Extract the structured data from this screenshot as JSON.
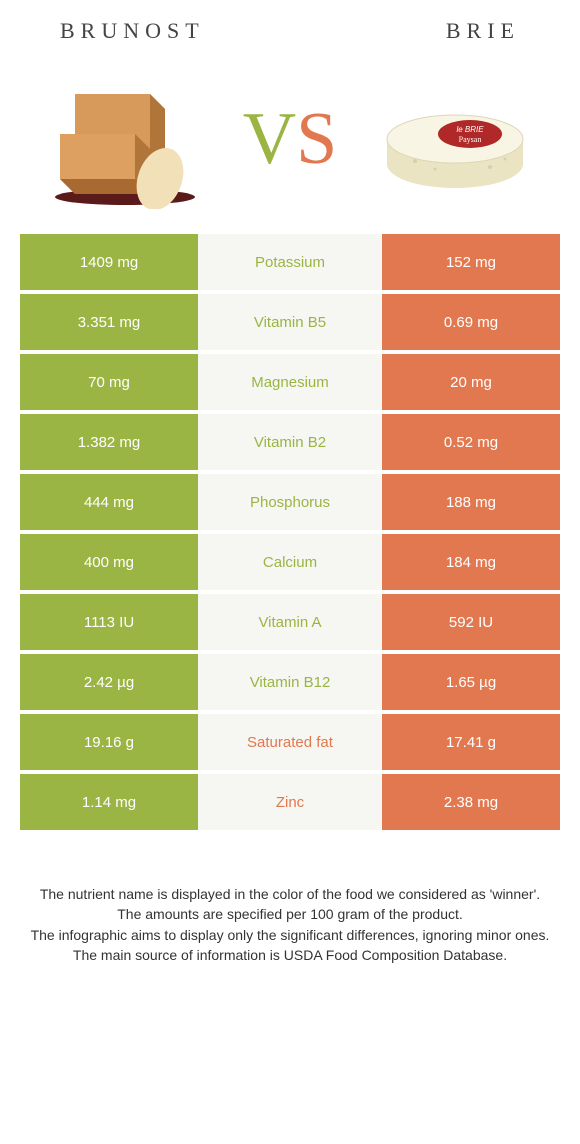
{
  "colors": {
    "left": "#9bb544",
    "right": "#e2784f",
    "mid_bg": "#f6f6f2",
    "text_dark": "#333333"
  },
  "header": {
    "left_title": "BRUNOST",
    "right_title": "BRIE"
  },
  "vs": {
    "v": "V",
    "s": "S"
  },
  "rows": [
    {
      "left": "1409 mg",
      "label": "Potassium",
      "right": "152 mg",
      "winner": "left"
    },
    {
      "left": "3.351 mg",
      "label": "Vitamin B5",
      "right": "0.69 mg",
      "winner": "left"
    },
    {
      "left": "70 mg",
      "label": "Magnesium",
      "right": "20 mg",
      "winner": "left"
    },
    {
      "left": "1.382 mg",
      "label": "Vitamin B2",
      "right": "0.52 mg",
      "winner": "left"
    },
    {
      "left": "444 mg",
      "label": "Phosphorus",
      "right": "188 mg",
      "winner": "left"
    },
    {
      "left": "400 mg",
      "label": "Calcium",
      "right": "184 mg",
      "winner": "left"
    },
    {
      "left": "1113 IU",
      "label": "Vitamin A",
      "right": "592 IU",
      "winner": "left"
    },
    {
      "left": "2.42 µg",
      "label": "Vitamin B12",
      "right": "1.65 µg",
      "winner": "left"
    },
    {
      "left": "19.16 g",
      "label": "Saturated fat",
      "right": "17.41 g",
      "winner": "right"
    },
    {
      "left": "1.14 mg",
      "label": "Zinc",
      "right": "2.38 mg",
      "winner": "right"
    }
  ],
  "footer": {
    "line1": "The nutrient name is displayed in the color of the food we considered as 'winner'.",
    "line2": "The amounts are specified per 100 gram of the product.",
    "line3": "The infographic aims to display only the significant differences, ignoring minor ones.",
    "line4": "The main source of information is USDA Food Composition Database."
  }
}
